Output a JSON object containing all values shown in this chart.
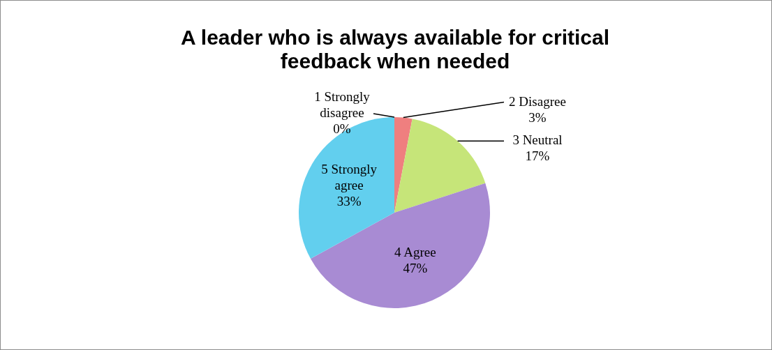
{
  "chart_data": {
    "type": "pie",
    "title": "A leader who is always available for critical feedback when needed",
    "categories": [
      "1 Strongly disagree",
      "2 Disagree",
      "3 Neutral",
      "4 Agree",
      "5 Strongly agree"
    ],
    "values": [
      0,
      3,
      17,
      47,
      33
    ],
    "value_labels": [
      "0%",
      "3%",
      "17%",
      "47%",
      "33%"
    ],
    "colors": [
      "#7fa6dc",
      "#ef7f7f",
      "#c6e579",
      "#a88bd3",
      "#62cfee"
    ],
    "legend": false
  }
}
